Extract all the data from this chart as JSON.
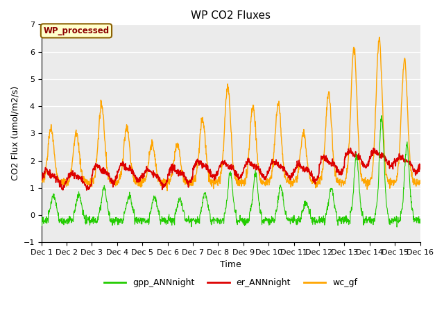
{
  "title": "WP CO2 Fluxes",
  "xlabel": "Time",
  "ylabel": "CO2 Flux (umol/m2/s)",
  "ylim": [
    -1.0,
    7.0
  ],
  "yticks": [
    -1.0,
    0.0,
    1.0,
    2.0,
    3.0,
    4.0,
    5.0,
    6.0,
    7.0
  ],
  "n_days": 15,
  "pts_per_day": 96,
  "xtick_labels": [
    "Dec 1",
    "Dec 2",
    "Dec 3",
    "Dec 4",
    "Dec 5",
    "Dec 6",
    "Dec 7",
    "Dec 8",
    "Dec 9",
    "Dec 10",
    "Dec 11",
    "Dec 12",
    "Dec 13",
    "Dec 14",
    "Dec 15",
    "Dec 16"
  ],
  "line_colors": {
    "gpp": "#22CC00",
    "er": "#DD0000",
    "wc": "#FFA500"
  },
  "line_widths": {
    "gpp": 0.8,
    "er": 1.2,
    "wc": 1.0
  },
  "legend_labels": [
    "gpp_ANNnight",
    "er_ANNnight",
    "wc_gf"
  ],
  "annotation_text": "WP_processed",
  "annotation_color": "#8B0000",
  "annotation_bg": "#FFFFCC",
  "annotation_border": "#8B6000",
  "bg_color": "#EBEBEB",
  "title_fontsize": 11,
  "axis_label_fontsize": 9,
  "tick_fontsize": 8,
  "fig_width": 6.4,
  "fig_height": 4.8,
  "dpi": 100
}
